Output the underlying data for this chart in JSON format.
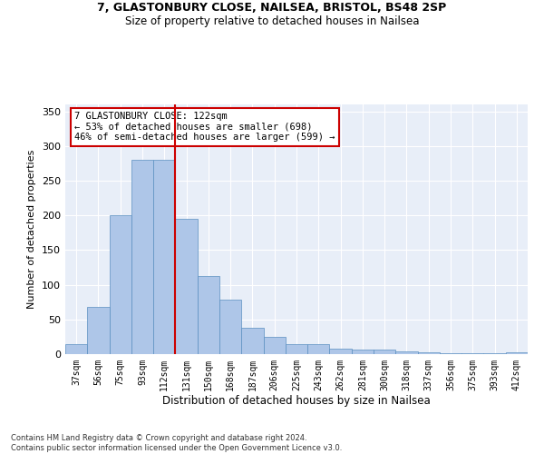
{
  "title1": "7, GLASTONBURY CLOSE, NAILSEA, BRISTOL, BS48 2SP",
  "title2": "Size of property relative to detached houses in Nailsea",
  "xlabel": "Distribution of detached houses by size in Nailsea",
  "ylabel": "Number of detached properties",
  "categories": [
    "37sqm",
    "56sqm",
    "75sqm",
    "93sqm",
    "112sqm",
    "131sqm",
    "150sqm",
    "168sqm",
    "187sqm",
    "206sqm",
    "225sqm",
    "243sqm",
    "262sqm",
    "281sqm",
    "300sqm",
    "318sqm",
    "337sqm",
    "356sqm",
    "375sqm",
    "393sqm",
    "412sqm"
  ],
  "values": [
    15,
    68,
    200,
    280,
    280,
    195,
    112,
    79,
    38,
    25,
    14,
    14,
    8,
    7,
    6,
    4,
    2,
    1,
    1,
    1,
    2
  ],
  "bar_color": "#aec6e8",
  "bar_edgecolor": "#5a8fc0",
  "vline_x_index": 4.5,
  "vline_color": "#cc0000",
  "annotation_text": "7 GLASTONBURY CLOSE: 122sqm\n← 53% of detached houses are smaller (698)\n46% of semi-detached houses are larger (599) →",
  "annotation_box_color": "white",
  "annotation_box_edgecolor": "#cc0000",
  "ylim": [
    0,
    360
  ],
  "yticks": [
    0,
    50,
    100,
    150,
    200,
    250,
    300,
    350
  ],
  "background_color": "#e8eef8",
  "grid_color": "white",
  "footer": "Contains HM Land Registry data © Crown copyright and database right 2024.\nContains public sector information licensed under the Open Government Licence v3.0."
}
